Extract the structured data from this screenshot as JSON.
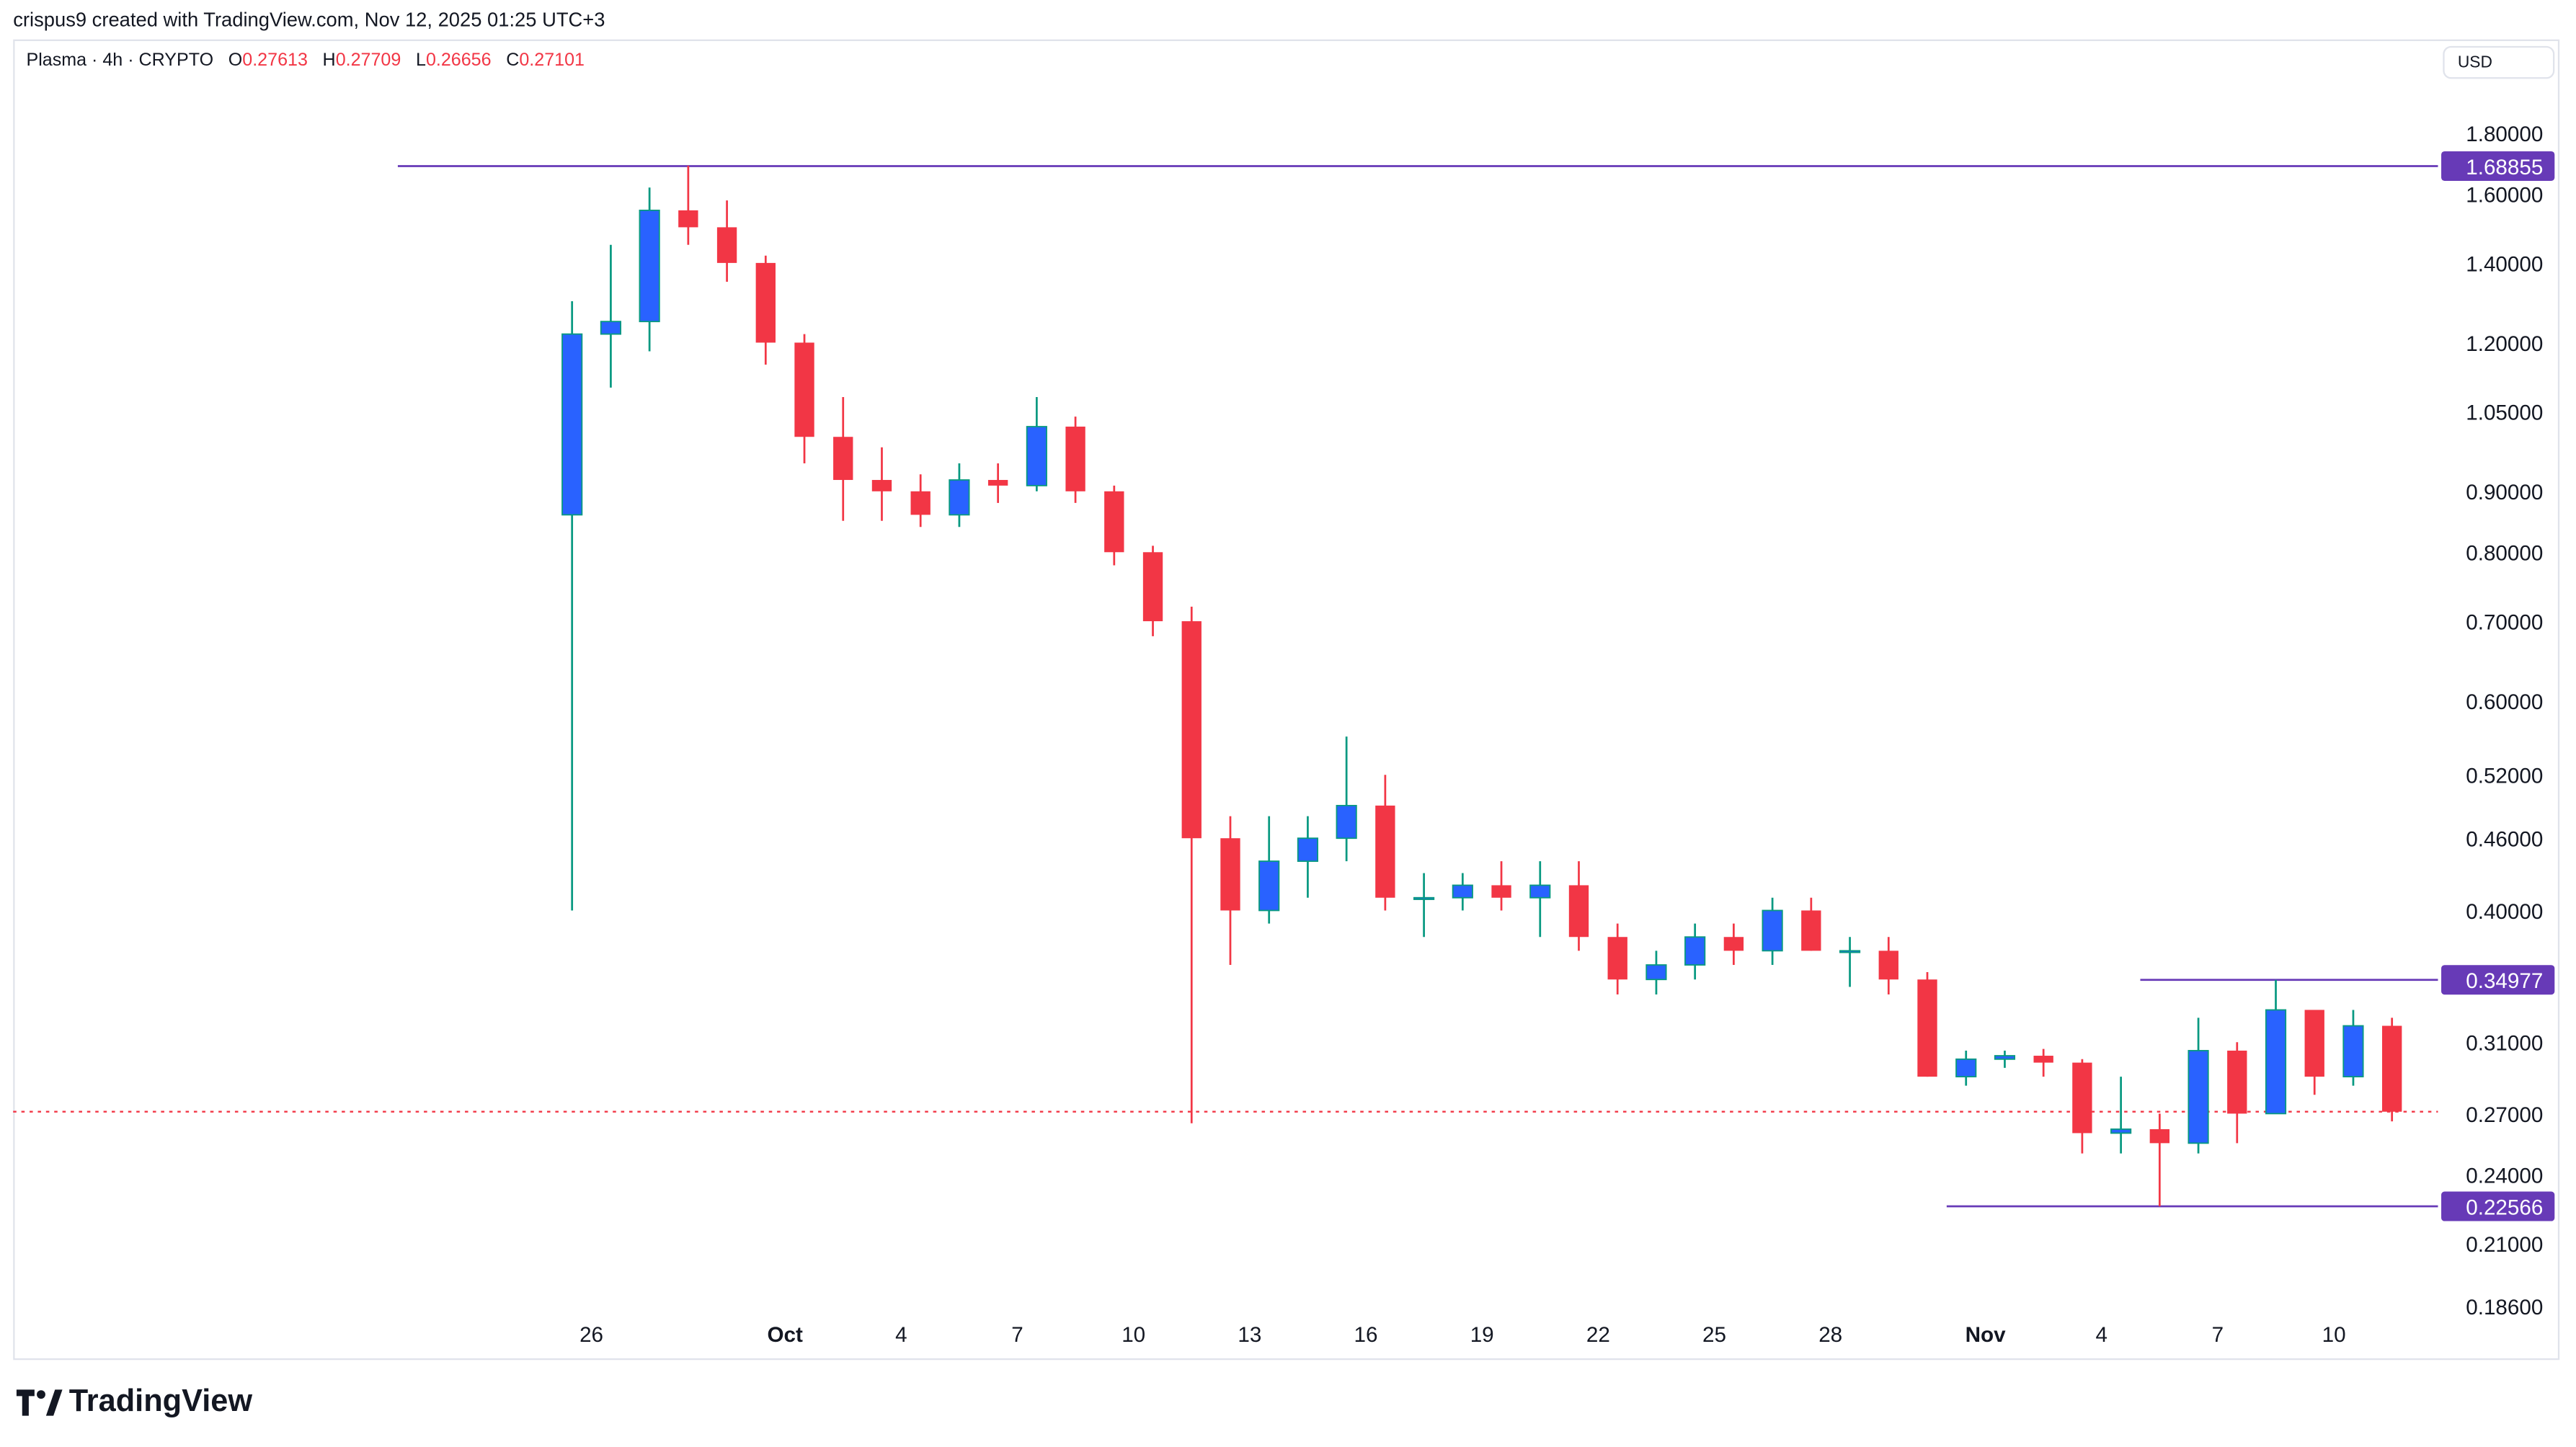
{
  "credit": "crispus9 created with TradingView.com, Nov 12, 2025 01:25 UTC+3",
  "legend": {
    "symbol": "Plasma · 4h · CRYPTO",
    "o_label": "O",
    "o": "0.27613",
    "h_label": "H",
    "h": "0.27709",
    "l_label": "L",
    "l": "0.26656",
    "c_label": "C",
    "c": "0.27101"
  },
  "currency": "USD",
  "logo": "TradingView",
  "colors": {
    "up_body": "#2962ff",
    "up_wick": "#089981",
    "down": "#f23645",
    "level_line": "#673ab7",
    "last_price": "#f23645"
  },
  "chart_data": {
    "type": "candlestick",
    "yscale": "log",
    "ylim": [
      0.186,
      1.8
    ],
    "y_ticks": [
      "1.80000",
      "1.60000",
      "1.40000",
      "1.20000",
      "1.05000",
      "0.90000",
      "0.80000",
      "0.70000",
      "0.60000",
      "0.52000",
      "0.46000",
      "0.40000",
      "0.31000",
      "0.27000",
      "0.24000",
      "0.21000",
      "0.18600"
    ],
    "x_ticks": [
      {
        "date": "2025-09-26",
        "label": "26"
      },
      {
        "date": "2025-10-01",
        "label": "Oct"
      },
      {
        "date": "2025-10-04",
        "label": "4"
      },
      {
        "date": "2025-10-07",
        "label": "7"
      },
      {
        "date": "2025-10-10",
        "label": "10"
      },
      {
        "date": "2025-10-13",
        "label": "13"
      },
      {
        "date": "2025-10-16",
        "label": "16"
      },
      {
        "date": "2025-10-19",
        "label": "19"
      },
      {
        "date": "2025-10-22",
        "label": "22"
      },
      {
        "date": "2025-10-25",
        "label": "25"
      },
      {
        "date": "2025-10-28",
        "label": "28"
      },
      {
        "date": "2025-11-01",
        "label": "Nov"
      },
      {
        "date": "2025-11-04",
        "label": "4"
      },
      {
        "date": "2025-11-07",
        "label": "7"
      },
      {
        "date": "2025-11-10",
        "label": "10"
      }
    ],
    "horizontal_levels": [
      {
        "value": 1.68855,
        "label": "1.68855",
        "from_date": "2025-09-21"
      },
      {
        "value": 0.34977,
        "label": "0.34977",
        "from_date": "2025-11-05"
      },
      {
        "value": 0.22566,
        "label": "0.22566",
        "from_date": "2025-10-31"
      }
    ],
    "last_price": 0.27101,
    "candles": [
      {
        "d": "2025-09-25",
        "o": 0.86,
        "h": 1.3,
        "l": 0.4,
        "c": 1.22
      },
      {
        "d": "2025-09-26",
        "o": 1.22,
        "h": 1.45,
        "l": 1.1,
        "c": 1.25
      },
      {
        "d": "2025-09-27",
        "o": 1.25,
        "h": 1.62,
        "l": 1.18,
        "c": 1.55
      },
      {
        "d": "2025-09-28",
        "o": 1.55,
        "h": 1.69,
        "l": 1.45,
        "c": 1.5
      },
      {
        "d": "2025-09-29",
        "o": 1.5,
        "h": 1.58,
        "l": 1.35,
        "c": 1.4
      },
      {
        "d": "2025-09-30",
        "o": 1.4,
        "h": 1.42,
        "l": 1.15,
        "c": 1.2
      },
      {
        "d": "2025-10-01",
        "o": 1.2,
        "h": 1.22,
        "l": 0.95,
        "c": 1.0
      },
      {
        "d": "2025-10-02",
        "o": 1.0,
        "h": 1.08,
        "l": 0.85,
        "c": 0.92
      },
      {
        "d": "2025-10-03",
        "o": 0.92,
        "h": 0.98,
        "l": 0.85,
        "c": 0.9
      },
      {
        "d": "2025-10-04",
        "o": 0.9,
        "h": 0.93,
        "l": 0.84,
        "c": 0.86
      },
      {
        "d": "2025-10-05",
        "o": 0.86,
        "h": 0.95,
        "l": 0.84,
        "c": 0.92
      },
      {
        "d": "2025-10-06",
        "o": 0.92,
        "h": 0.95,
        "l": 0.88,
        "c": 0.91
      },
      {
        "d": "2025-10-07",
        "o": 0.91,
        "h": 1.08,
        "l": 0.9,
        "c": 1.02
      },
      {
        "d": "2025-10-08",
        "o": 1.02,
        "h": 1.04,
        "l": 0.88,
        "c": 0.9
      },
      {
        "d": "2025-10-09",
        "o": 0.9,
        "h": 0.91,
        "l": 0.78,
        "c": 0.8
      },
      {
        "d": "2025-10-10",
        "o": 0.8,
        "h": 0.81,
        "l": 0.68,
        "c": 0.7
      },
      {
        "d": "2025-10-11",
        "o": 0.7,
        "h": 0.72,
        "l": 0.265,
        "c": 0.46
      },
      {
        "d": "2025-10-12",
        "o": 0.46,
        "h": 0.48,
        "l": 0.36,
        "c": 0.4
      },
      {
        "d": "2025-10-13",
        "o": 0.4,
        "h": 0.48,
        "l": 0.39,
        "c": 0.44
      },
      {
        "d": "2025-10-14",
        "o": 0.44,
        "h": 0.48,
        "l": 0.41,
        "c": 0.46
      },
      {
        "d": "2025-10-15",
        "o": 0.46,
        "h": 0.56,
        "l": 0.44,
        "c": 0.49
      },
      {
        "d": "2025-10-16",
        "o": 0.49,
        "h": 0.52,
        "l": 0.4,
        "c": 0.41
      },
      {
        "d": "2025-10-17",
        "o": 0.41,
        "h": 0.43,
        "l": 0.38,
        "c": 0.41
      },
      {
        "d": "2025-10-18",
        "o": 0.41,
        "h": 0.43,
        "l": 0.4,
        "c": 0.42
      },
      {
        "d": "2025-10-19",
        "o": 0.42,
        "h": 0.44,
        "l": 0.4,
        "c": 0.41
      },
      {
        "d": "2025-10-20",
        "o": 0.41,
        "h": 0.44,
        "l": 0.38,
        "c": 0.42
      },
      {
        "d": "2025-10-21",
        "o": 0.42,
        "h": 0.44,
        "l": 0.37,
        "c": 0.38
      },
      {
        "d": "2025-10-22",
        "o": 0.38,
        "h": 0.39,
        "l": 0.34,
        "c": 0.35
      },
      {
        "d": "2025-10-23",
        "o": 0.35,
        "h": 0.37,
        "l": 0.34,
        "c": 0.36
      },
      {
        "d": "2025-10-24",
        "o": 0.36,
        "h": 0.39,
        "l": 0.35,
        "c": 0.38
      },
      {
        "d": "2025-10-25",
        "o": 0.38,
        "h": 0.39,
        "l": 0.36,
        "c": 0.37
      },
      {
        "d": "2025-10-26",
        "o": 0.37,
        "h": 0.41,
        "l": 0.36,
        "c": 0.4
      },
      {
        "d": "2025-10-27",
        "o": 0.4,
        "h": 0.41,
        "l": 0.37,
        "c": 0.37
      },
      {
        "d": "2025-10-28",
        "o": 0.37,
        "h": 0.38,
        "l": 0.345,
        "c": 0.37
      },
      {
        "d": "2025-10-29",
        "o": 0.37,
        "h": 0.38,
        "l": 0.34,
        "c": 0.35
      },
      {
        "d": "2025-10-30",
        "o": 0.35,
        "h": 0.355,
        "l": 0.29,
        "c": 0.29
      },
      {
        "d": "2025-10-31",
        "o": 0.29,
        "h": 0.305,
        "l": 0.285,
        "c": 0.3
      },
      {
        "d": "2025-11-01",
        "o": 0.3,
        "h": 0.305,
        "l": 0.295,
        "c": 0.302
      },
      {
        "d": "2025-11-02",
        "o": 0.302,
        "h": 0.306,
        "l": 0.29,
        "c": 0.298
      },
      {
        "d": "2025-11-03",
        "o": 0.298,
        "h": 0.3,
        "l": 0.25,
        "c": 0.26
      },
      {
        "d": "2025-11-04",
        "o": 0.26,
        "h": 0.29,
        "l": 0.25,
        "c": 0.262
      },
      {
        "d": "2025-11-05",
        "o": 0.262,
        "h": 0.27,
        "l": 0.22566,
        "c": 0.255
      },
      {
        "d": "2025-11-06",
        "o": 0.255,
        "h": 0.325,
        "l": 0.25,
        "c": 0.305
      },
      {
        "d": "2025-11-07",
        "o": 0.305,
        "h": 0.31,
        "l": 0.255,
        "c": 0.27
      },
      {
        "d": "2025-11-08",
        "o": 0.27,
        "h": 0.34977,
        "l": 0.27,
        "c": 0.33
      },
      {
        "d": "2025-11-09",
        "o": 0.33,
        "h": 0.33,
        "l": 0.28,
        "c": 0.29
      },
      {
        "d": "2025-11-10",
        "o": 0.29,
        "h": 0.33,
        "l": 0.285,
        "c": 0.32
      },
      {
        "d": "2025-11-11",
        "o": 0.32,
        "h": 0.325,
        "l": 0.266,
        "c": 0.271
      }
    ]
  }
}
